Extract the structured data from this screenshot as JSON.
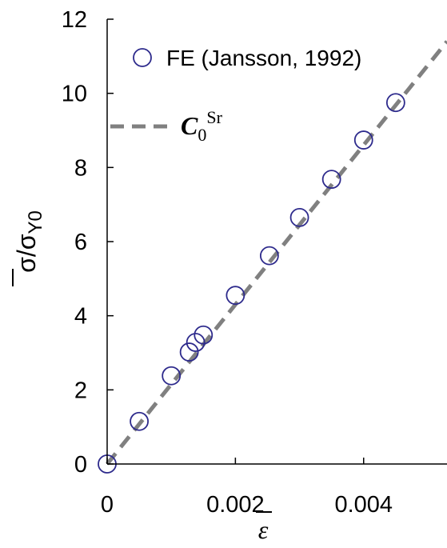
{
  "chart_data": {
    "type": "scatter",
    "title": "",
    "xlabel": "ε",
    "ylabel_main": "σ",
    "ylabel_den": "σ",
    "ylabel_sub": "Y0",
    "xlim": [
      0,
      0.0053
    ],
    "ylim": [
      0,
      12
    ],
    "x_ticks": [
      0,
      0.002,
      0.004
    ],
    "x_tick_labels": [
      "0",
      "0.002",
      "0.004"
    ],
    "y_ticks": [
      0,
      2,
      4,
      6,
      8,
      10,
      12
    ],
    "y_tick_labels": [
      "0",
      "2",
      "4",
      "6",
      "8",
      "10",
      "12"
    ],
    "grid": false,
    "legend_position": "top-right",
    "series": [
      {
        "name": "FE (Jansson, 1992)",
        "kind": "scatter",
        "marker": "open-circle",
        "color": "#2d2a8c",
        "x": [
          0,
          0.0005,
          0.001,
          0.00128,
          0.00138,
          0.0015,
          0.002,
          0.00253,
          0.003,
          0.0035,
          0.004,
          0.0045
        ],
        "y": [
          0,
          1.15,
          2.38,
          3.02,
          3.28,
          3.48,
          4.55,
          5.62,
          6.65,
          7.68,
          8.74,
          9.75
        ]
      },
      {
        "name_main": "C",
        "name_sub": "0",
        "name_sup": "Sr",
        "kind": "line",
        "style": "dashed",
        "color": "#808080",
        "x": [
          0,
          0.0053
        ],
        "y": [
          0,
          11.4
        ]
      }
    ]
  }
}
